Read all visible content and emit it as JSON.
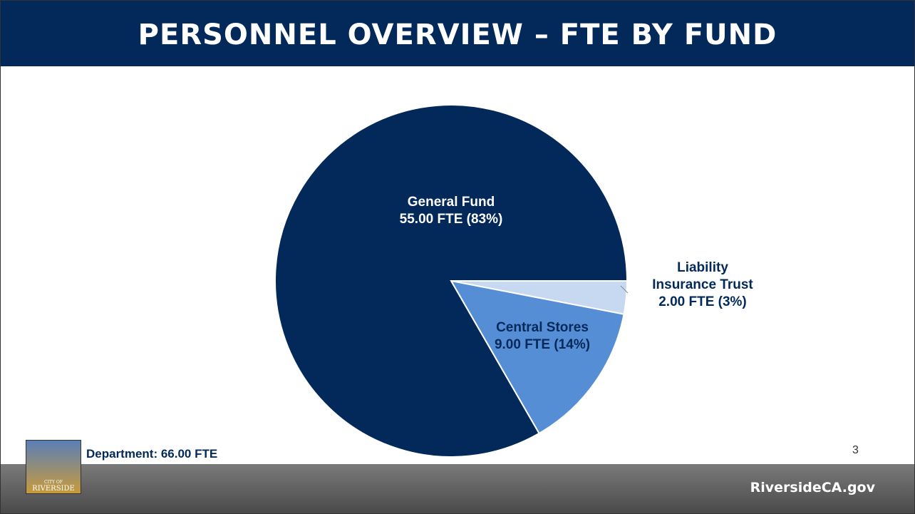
{
  "title": "PERSONNEL OVERVIEW – FTE BY FUND",
  "chart_data": {
    "type": "pie",
    "categories": [
      "General Fund",
      "Central Stores",
      "Liability Insurance Trust"
    ],
    "values": [
      55,
      9,
      2
    ],
    "value_labels": [
      "55.00 FTE (83%)",
      "9.00 FTE (14%)",
      "2.00 FTE (3%)"
    ],
    "colors": [
      "#03295a",
      "#558ed5",
      "#c6d9f1"
    ]
  },
  "footer": {
    "department": "Department: 66.00 FTE",
    "page_number": "3",
    "website": "RiversideCA.gov",
    "logo_top": "CITY OF",
    "logo_name": "RIVERSIDE"
  }
}
